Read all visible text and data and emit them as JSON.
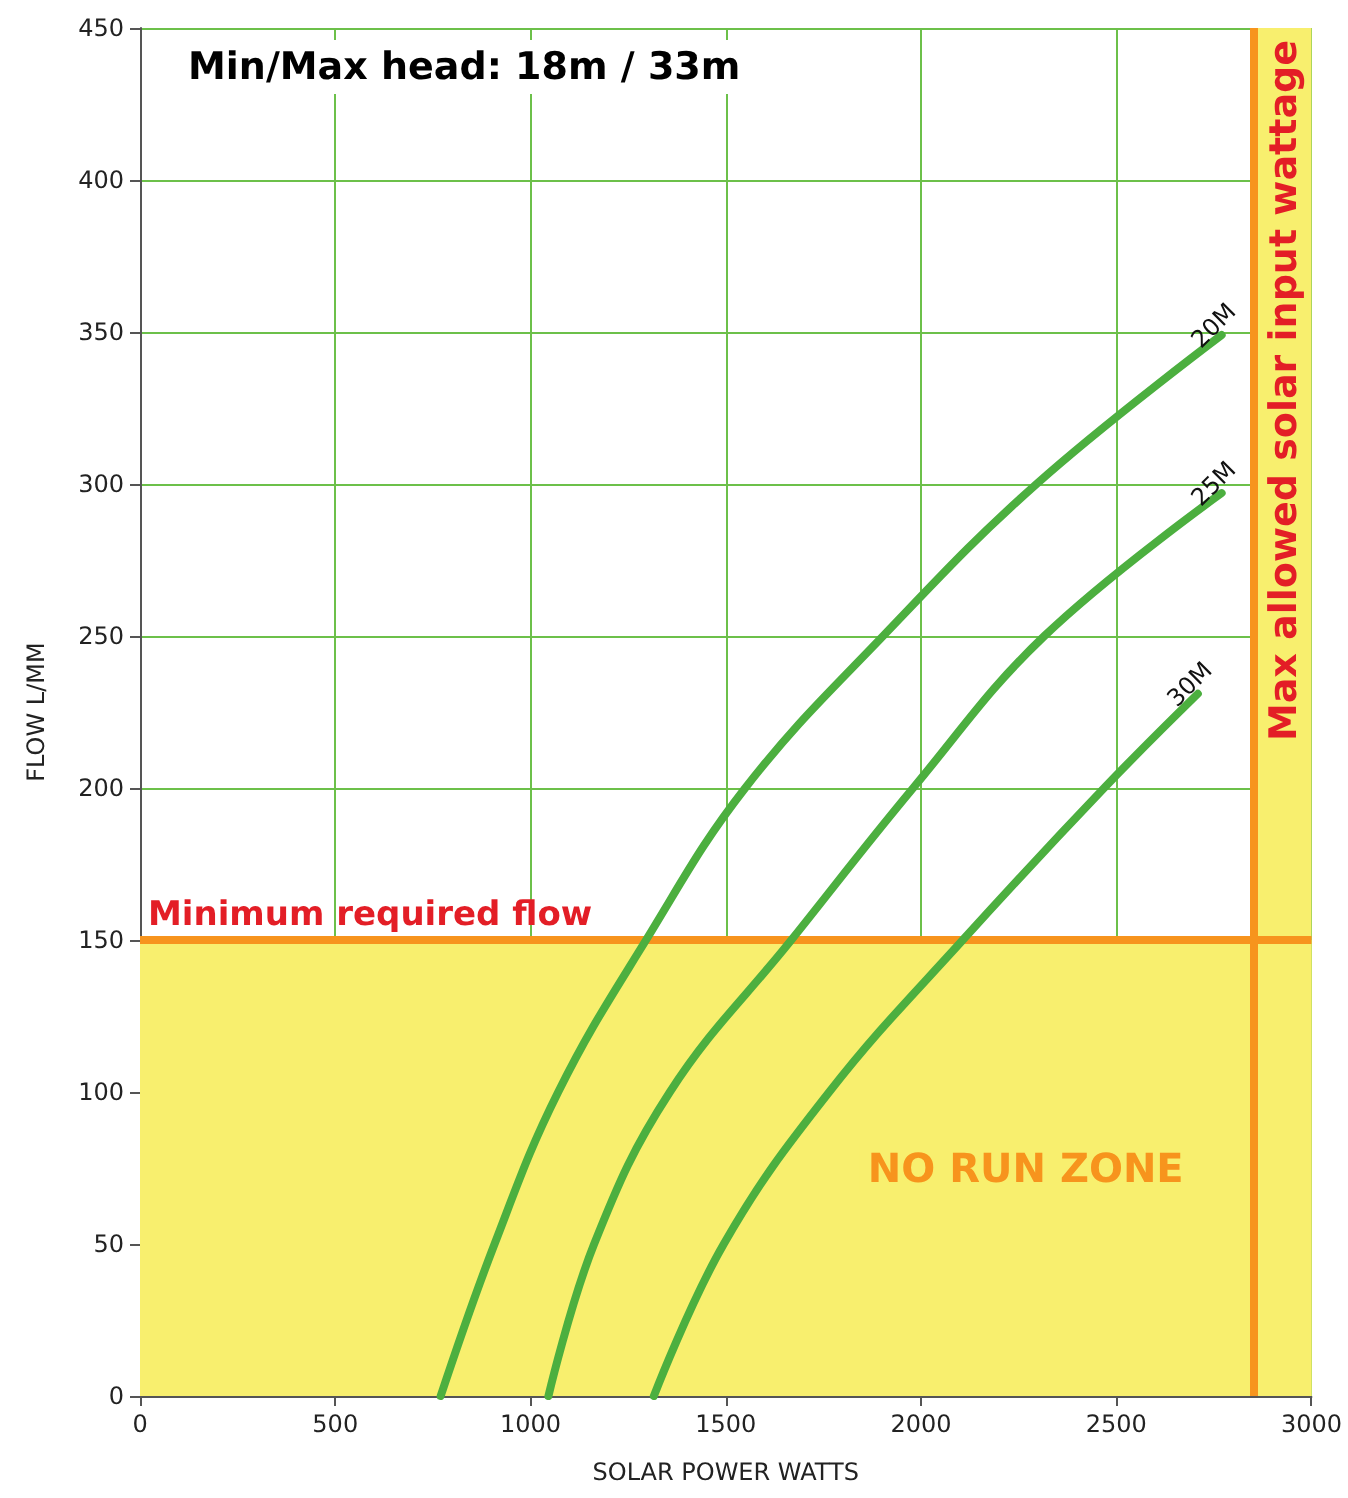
{
  "chart_data": {
    "type": "line",
    "title": "Min/Max head: 18m / 33m",
    "xlabel": "SOLAR POWER WATTS",
    "ylabel": "FLOW L/MM",
    "xlim": [
      0,
      3000
    ],
    "xticks": [
      0,
      500,
      1000,
      1500,
      2000,
      2500,
      3000
    ],
    "ylim": [
      0,
      450
    ],
    "yticks": [
      0,
      50,
      100,
      150,
      200,
      250,
      300,
      350,
      400,
      450
    ],
    "grid": true,
    "legend": false,
    "marker": "none",
    "line_style": "solid",
    "series": [
      {
        "name": "20M",
        "color": "#4caf3f",
        "x": [
          770,
          908,
          1071,
          1296,
          1550,
          1903,
          2296,
          2770
        ],
        "values": [
          0,
          50,
          100,
          150,
          200,
          250,
          300,
          349
        ]
      },
      {
        "name": "25M",
        "color": "#4caf3f",
        "x": [
          1046,
          1163,
          1357,
          1668,
          1980,
          2316,
          2770
        ],
        "values": [
          0,
          50,
          100,
          150,
          200,
          250,
          297
        ]
      },
      {
        "name": "30M",
        "color": "#4caf3f",
        "x": [
          1316,
          1495,
          1765,
          2107,
          2469,
          2709
        ],
        "values": [
          0,
          50,
          100,
          150,
          200,
          231
        ]
      }
    ],
    "ref_lines": [
      {
        "axis": "y",
        "value": 150,
        "label": "Minimum required flow",
        "color": "#f7941d"
      },
      {
        "axis": "x",
        "value": 2850,
        "label": "Max allowed solar input wattage",
        "color": "#f7941d"
      }
    ],
    "bands": [
      {
        "axis": "y",
        "from": 0,
        "to": 150,
        "label": "NO RUN ZONE",
        "color": "#f8ef6e"
      },
      {
        "axis": "x",
        "from": 2850,
        "to": 3000,
        "color": "#f8ef6e"
      }
    ]
  }
}
